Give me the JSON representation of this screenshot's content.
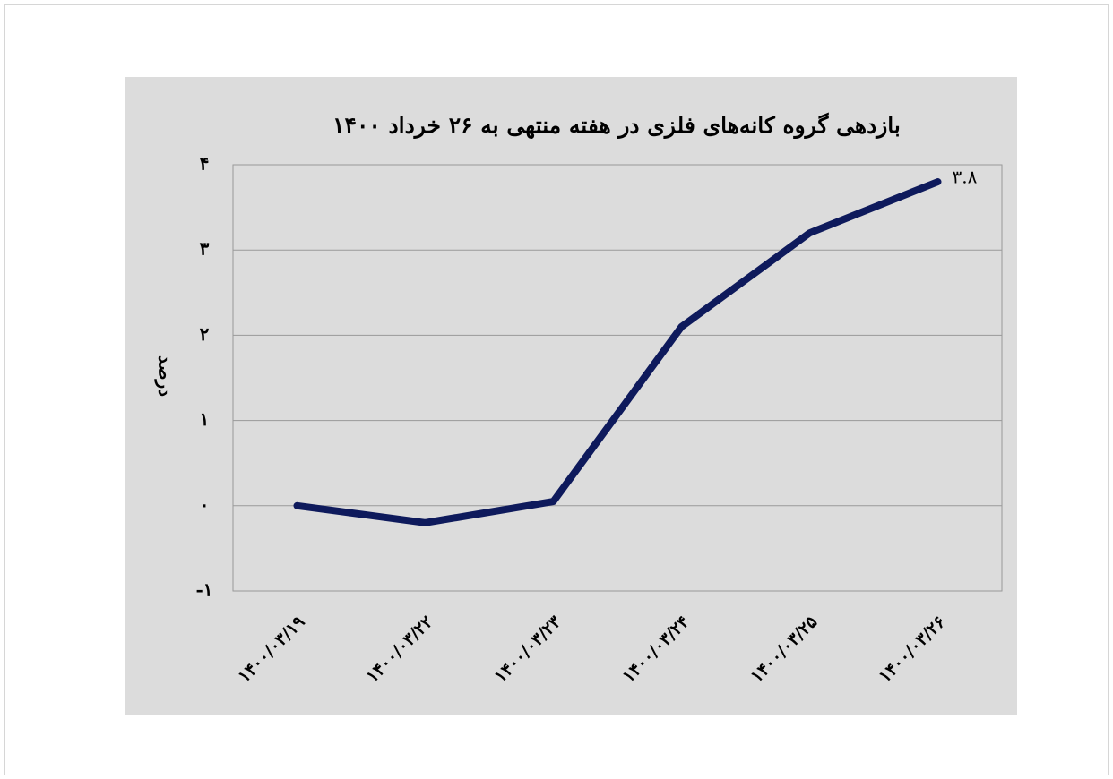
{
  "chart_data": {
    "type": "line",
    "title": "بازدهی گروه کانه‌های فلزی در هفته منتهی به ۲۶ خرداد ۱۴۰۰",
    "y_label": "درصد",
    "categories": [
      "۱۴۰۰/۰۳/۱۹",
      "۱۴۰۰/۰۳/۲۲",
      "۱۴۰۰/۰۳/۲۳",
      "۱۴۰۰/۰۳/۲۴",
      "۱۴۰۰/۰۳/۲۵",
      "۱۴۰۰/۰۳/۲۶"
    ],
    "series": [
      {
        "name": "بازدهی",
        "color": "#0e1a5c",
        "values": [
          0,
          -0.2,
          0.05,
          2.1,
          3.2,
          3.8
        ],
        "value_labels": [
          null,
          null,
          null,
          null,
          null,
          "۳.۸"
        ]
      }
    ],
    "ylim": [
      -1,
      4
    ],
    "yticks": [
      {
        "value": -1,
        "label": "-۱"
      },
      {
        "value": 0,
        "label": "۰"
      },
      {
        "value": 1,
        "label": "۱"
      },
      {
        "value": 2,
        "label": "۲"
      },
      {
        "value": 3,
        "label": "۳"
      },
      {
        "value": 4,
        "label": "۴"
      }
    ]
  }
}
